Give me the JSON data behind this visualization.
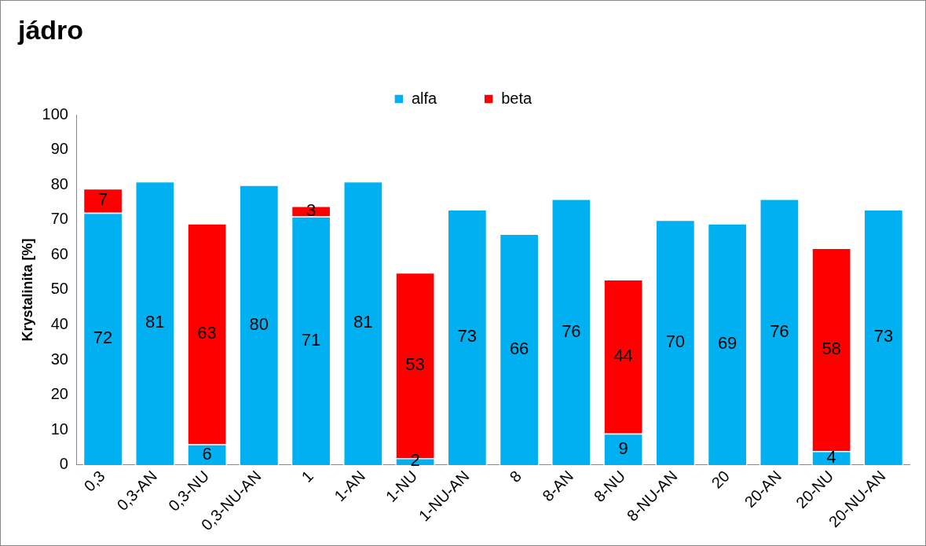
{
  "chart_data": {
    "type": "bar",
    "title": "jádro",
    "ylabel": "Krystalinita [%]",
    "categories": [
      "0,3",
      "0,3-AN",
      "0,3-NU",
      "0,3-NU-AN",
      "1",
      "1-AN",
      "1-NU",
      "1-NU-AN",
      "8",
      "8-AN",
      "8-NU",
      "8-NU-AN",
      "20",
      "20-AN",
      "20-NU",
      "20-NU-AN"
    ],
    "series": [
      {
        "name": "alfa",
        "color": "#00b0f0",
        "values": [
          72,
          81,
          6,
          80,
          71,
          81,
          2,
          73,
          66,
          76,
          9,
          70,
          69,
          76,
          4,
          73
        ]
      },
      {
        "name": "beta",
        "color": "#ff0000",
        "values": [
          7,
          null,
          63,
          null,
          3,
          null,
          53,
          null,
          null,
          null,
          44,
          null,
          null,
          null,
          58,
          null
        ]
      }
    ],
    "stacked": true,
    "ylim": [
      0,
      100
    ],
    "yticks": [
      0,
      10,
      20,
      30,
      40,
      50,
      60,
      70,
      80,
      90,
      100
    ],
    "grid": false,
    "legend": "top",
    "data_labels": true
  }
}
